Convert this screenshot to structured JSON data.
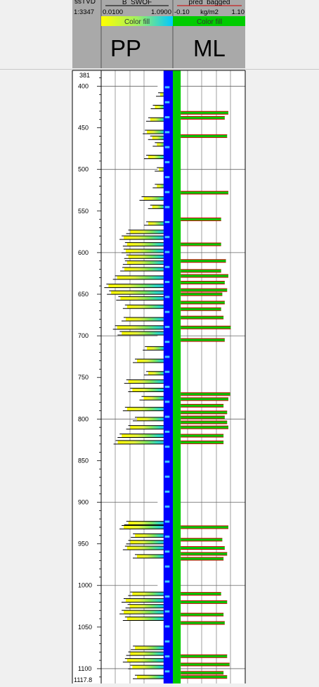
{
  "header": {
    "depth_col": {
      "top_label": "ssTVD",
      "scale": "1:3347"
    },
    "track_pp": {
      "curve_name": "B_SWOF",
      "min": "0.0100",
      "max": "1.0900",
      "fill_label": "Color fill",
      "big_label": "PP"
    },
    "track_ml": {
      "curve_name": "pred_bagged",
      "min": "-0.10",
      "unit": "kg/m2",
      "max": "1.10",
      "fill_label": "Color fill",
      "big_label": "ML"
    }
  },
  "depth_axis": {
    "top_value": "381",
    "bottom_value": "1117.8",
    "ticks": [
      "400",
      "450",
      "500",
      "550",
      "600",
      "650",
      "700",
      "750",
      "800",
      "850",
      "900",
      "950",
      "1000",
      "1050",
      "1100"
    ]
  },
  "colors": {
    "pp_fill_gradient": [
      "#ffff00",
      "#e0f040",
      "#80e860",
      "#30d8c0",
      "#30b0e8"
    ],
    "ml_fill": "#00cc00",
    "ml_outline": "#cc0000",
    "center_bar": "#0000ff"
  },
  "chart_data": [
    {
      "type": "area",
      "track": "PP",
      "curve": "B_SWOF",
      "xlim": [
        0.01,
        1.09
      ],
      "ylim": [
        381,
        1117.8
      ],
      "y_reversed": true,
      "ylabel": "ssTVD",
      "spikes": [
        {
          "depth": 410,
          "value": 0.9
        },
        {
          "depth": 425,
          "value": 0.82
        },
        {
          "depth": 440,
          "value": 0.75
        },
        {
          "depth": 455,
          "value": 0.7
        },
        {
          "depth": 462,
          "value": 0.78
        },
        {
          "depth": 470,
          "value": 0.85
        },
        {
          "depth": 485,
          "value": 0.72
        },
        {
          "depth": 500,
          "value": 0.88
        },
        {
          "depth": 520,
          "value": 0.85
        },
        {
          "depth": 535,
          "value": 0.65
        },
        {
          "depth": 545,
          "value": 0.78
        },
        {
          "depth": 565,
          "value": 0.72
        },
        {
          "depth": 575,
          "value": 0.45
        },
        {
          "depth": 582,
          "value": 0.35
        },
        {
          "depth": 590,
          "value": 0.4
        },
        {
          "depth": 598,
          "value": 0.38
        },
        {
          "depth": 605,
          "value": 0.42
        },
        {
          "depth": 612,
          "value": 0.4
        },
        {
          "depth": 620,
          "value": 0.36
        },
        {
          "depth": 630,
          "value": 0.25
        },
        {
          "depth": 640,
          "value": 0.12
        },
        {
          "depth": 648,
          "value": 0.16
        },
        {
          "depth": 655,
          "value": 0.3
        },
        {
          "depth": 665,
          "value": 0.4
        },
        {
          "depth": 680,
          "value": 0.38
        },
        {
          "depth": 690,
          "value": 0.25
        },
        {
          "depth": 697,
          "value": 0.32
        },
        {
          "depth": 715,
          "value": 0.7
        },
        {
          "depth": 730,
          "value": 0.55
        },
        {
          "depth": 745,
          "value": 0.72
        },
        {
          "depth": 755,
          "value": 0.42
        },
        {
          "depth": 765,
          "value": 0.48
        },
        {
          "depth": 775,
          "value": 0.65
        },
        {
          "depth": 788,
          "value": 0.4
        },
        {
          "depth": 800,
          "value": 0.55
        },
        {
          "depth": 810,
          "value": 0.45
        },
        {
          "depth": 820,
          "value": 0.32
        },
        {
          "depth": 828,
          "value": 0.26
        },
        {
          "depth": 925,
          "value": 0.42
        },
        {
          "depth": 930,
          "value": 0.35
        },
        {
          "depth": 940,
          "value": 0.52
        },
        {
          "depth": 948,
          "value": 0.45
        },
        {
          "depth": 955,
          "value": 0.4
        },
        {
          "depth": 965,
          "value": 0.55
        },
        {
          "depth": 1010,
          "value": 0.48
        },
        {
          "depth": 1018,
          "value": 0.38
        },
        {
          "depth": 1025,
          "value": 0.44
        },
        {
          "depth": 1032,
          "value": 0.35
        },
        {
          "depth": 1040,
          "value": 0.4
        },
        {
          "depth": 1075,
          "value": 0.52
        },
        {
          "depth": 1082,
          "value": 0.45
        },
        {
          "depth": 1090,
          "value": 0.4
        },
        {
          "depth": 1098,
          "value": 0.48
        },
        {
          "depth": 1110,
          "value": 0.55
        }
      ]
    },
    {
      "type": "area",
      "track": "ML",
      "curve": "pred_bagged",
      "unit": "kg/m2",
      "xlim": [
        -0.1,
        1.1
      ],
      "ylim": [
        381,
        1117.8
      ],
      "y_reversed": true,
      "spikes": [
        {
          "depth": 432,
          "value": 0.82
        },
        {
          "depth": 438,
          "value": 0.76
        },
        {
          "depth": 460,
          "value": 0.8
        },
        {
          "depth": 528,
          "value": 0.82
        },
        {
          "depth": 560,
          "value": 0.7
        },
        {
          "depth": 590,
          "value": 0.7
        },
        {
          "depth": 610,
          "value": 0.78
        },
        {
          "depth": 622,
          "value": 0.7
        },
        {
          "depth": 628,
          "value": 0.82
        },
        {
          "depth": 636,
          "value": 0.76
        },
        {
          "depth": 645,
          "value": 0.8
        },
        {
          "depth": 650,
          "value": 0.72
        },
        {
          "depth": 660,
          "value": 0.76
        },
        {
          "depth": 668,
          "value": 0.7
        },
        {
          "depth": 678,
          "value": 0.74
        },
        {
          "depth": 690,
          "value": 0.86
        },
        {
          "depth": 705,
          "value": 0.76
        },
        {
          "depth": 770,
          "value": 0.85
        },
        {
          "depth": 776,
          "value": 0.82
        },
        {
          "depth": 784,
          "value": 0.74
        },
        {
          "depth": 792,
          "value": 0.8
        },
        {
          "depth": 798,
          "value": 0.76
        },
        {
          "depth": 804,
          "value": 0.8
        },
        {
          "depth": 810,
          "value": 0.82
        },
        {
          "depth": 820,
          "value": 0.74
        },
        {
          "depth": 828,
          "value": 0.74
        },
        {
          "depth": 930,
          "value": 0.82
        },
        {
          "depth": 945,
          "value": 0.72
        },
        {
          "depth": 955,
          "value": 0.76
        },
        {
          "depth": 962,
          "value": 0.8
        },
        {
          "depth": 968,
          "value": 0.74
        },
        {
          "depth": 1010,
          "value": 0.7
        },
        {
          "depth": 1020,
          "value": 0.8
        },
        {
          "depth": 1035,
          "value": 0.74
        },
        {
          "depth": 1045,
          "value": 0.76
        },
        {
          "depth": 1085,
          "value": 0.8
        },
        {
          "depth": 1095,
          "value": 0.84
        },
        {
          "depth": 1105,
          "value": 0.74
        },
        {
          "depth": 1110,
          "value": 0.8
        }
      ]
    }
  ]
}
